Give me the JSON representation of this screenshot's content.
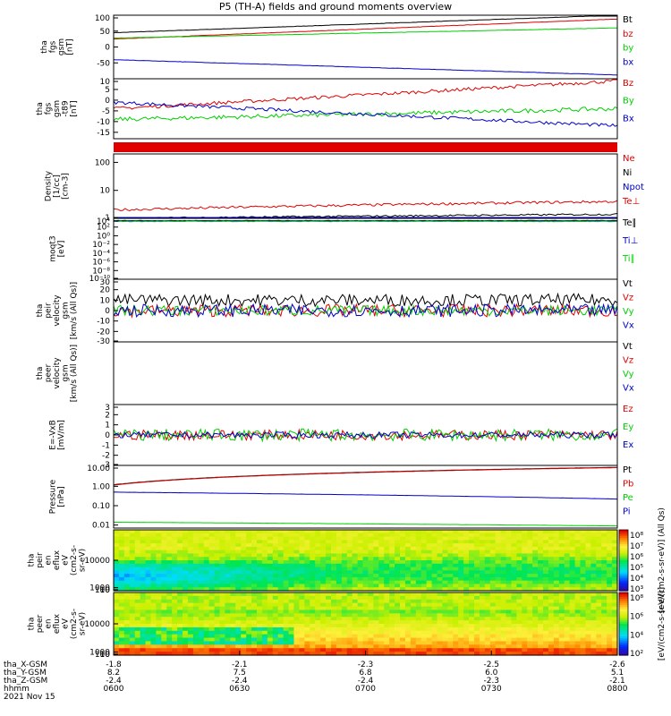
{
  "title": "P5 (TH-A) fields and ground moments overview",
  "colors": {
    "black": "#000000",
    "red": "#e00000",
    "green": "#00d000",
    "blue": "#0000c8"
  },
  "chart_data": [
    {
      "type": "line",
      "panel": "fgs_gsm",
      "ylabel": [
        "tha",
        "fgs",
        "gsm",
        "[nT]"
      ],
      "ylim": [
        -100,
        100
      ],
      "ticks": [
        100,
        50,
        0,
        -50
      ],
      "series": [
        {
          "name": "Bt",
          "color": "black",
          "start": 45,
          "end": 100,
          "noise": 0.5
        },
        {
          "name": "bz",
          "color": "red",
          "start": 25,
          "end": 88,
          "noise": 0.5
        },
        {
          "name": "by",
          "color": "green",
          "start": 28,
          "end": 60,
          "noise": 0.5
        },
        {
          "name": "bx",
          "color": "blue",
          "start": -40,
          "end": -88,
          "noise": 0.5
        }
      ]
    },
    {
      "type": "line",
      "panel": "fgs_dsl",
      "ylabel": [
        "tha",
        "fgs",
        "gsm",
        "-t89",
        "[nT]"
      ],
      "ylim": [
        -18,
        10
      ],
      "ticks": [
        10,
        5,
        0,
        -5,
        -10,
        -15
      ],
      "series": [
        {
          "name": "Bz",
          "color": "red",
          "start": -4,
          "end": 9,
          "noise": 0.8
        },
        {
          "name": "By",
          "color": "green",
          "start": -9,
          "end": -4,
          "noise": 1.0
        },
        {
          "name": "Bx",
          "color": "blue",
          "start": -1,
          "end": -12,
          "noise": 0.8
        }
      ]
    },
    {
      "type": "bar",
      "panel": "red_strip",
      "ylabel": []
    },
    {
      "type": "line",
      "panel": "density",
      "ylabel": [
        "Density",
        "[1/cc]",
        "[cm-3]"
      ],
      "scale": "log",
      "ylim": [
        1,
        200
      ],
      "ticks": [
        "100",
        "10",
        "1"
      ],
      "series": [
        {
          "name": "Ne",
          "color": "red",
          "start": 2,
          "end": 4,
          "noise": 0.15
        },
        {
          "name": "Ni",
          "color": "black",
          "start": 1,
          "end": 1.4,
          "noise": 0.1
        },
        {
          "name": "Npot",
          "color": "blue",
          "start": 1,
          "end": 1,
          "noise": 0.05
        },
        {
          "name": "Te⊥",
          "color": "red",
          "start": 0,
          "end": 0,
          "noise": 0
        }
      ]
    },
    {
      "type": "line",
      "panel": "temperature",
      "ylabel": [
        "moqt3",
        "[eV]"
      ],
      "scale": "log",
      "ylim": [
        1e-10,
        10000.0
      ],
      "ticks": [
        "10⁴",
        "10²",
        "10⁰",
        "10⁻²",
        "10⁻⁴",
        "10⁻⁶",
        "10⁻⁸",
        "10⁻¹⁰"
      ],
      "series": [
        {
          "name": "Te∥",
          "color": "black",
          "start": 3000,
          "end": 3000,
          "noise": 0.2
        },
        {
          "name": "Ti⊥",
          "color": "blue",
          "start": 2500,
          "end": 2500,
          "noise": 0.2
        },
        {
          "name": "Ti∥",
          "color": "green",
          "start": 2000,
          "end": 2000,
          "noise": 0.2
        }
      ]
    },
    {
      "type": "line",
      "panel": "peir_velocity",
      "ylabel": [
        "tha",
        "peir",
        "velocity",
        "gsm",
        "[km/s (All Qs)]"
      ],
      "ylim": [
        -30,
        30
      ],
      "ticks": [
        30,
        20,
        10,
        0,
        -10,
        -20,
        -30
      ],
      "series": [
        {
          "name": "Vt",
          "color": "black",
          "start": 10,
          "end": 10,
          "noise": 6
        },
        {
          "name": "Vz",
          "color": "red",
          "start": 0,
          "end": 0,
          "noise": 6
        },
        {
          "name": "Vy",
          "color": "green",
          "start": 0,
          "end": 0,
          "noise": 5
        },
        {
          "name": "Vx",
          "color": "blue",
          "start": 0,
          "end": 0,
          "noise": 6
        }
      ]
    },
    {
      "type": "line",
      "panel": "peer_velocity",
      "ylabel": [
        "tha",
        "peer",
        "velocity",
        "gsm",
        "[km/s (All Qs)]"
      ],
      "ylim": [
        -1,
        1
      ],
      "series": [
        {
          "name": "Vt",
          "color": "black"
        },
        {
          "name": "Vz",
          "color": "red"
        },
        {
          "name": "Vy",
          "color": "green"
        },
        {
          "name": "Vx",
          "color": "blue"
        }
      ]
    },
    {
      "type": "line",
      "panel": "efield",
      "ylabel": [
        "E=-VxB",
        "[mV/m]"
      ],
      "ylim": [
        -3,
        3
      ],
      "ticks": [
        3,
        2,
        1,
        0,
        -1,
        -2,
        -3
      ],
      "series": [
        {
          "name": "Ez",
          "color": "red",
          "start": 0,
          "end": 0,
          "noise": 0.5
        },
        {
          "name": "Ey",
          "color": "green",
          "start": 0,
          "end": 0,
          "noise": 0.6
        },
        {
          "name": "Ex",
          "color": "blue",
          "start": 0,
          "end": 0,
          "noise": 0.3
        }
      ]
    },
    {
      "type": "line",
      "panel": "pressure",
      "ylabel": [
        "Pressure",
        "[nPa]"
      ],
      "scale": "log",
      "ylim": [
        0.007,
        12
      ],
      "ticks": [
        "10.00",
        "1.00",
        "0.10",
        "0.01"
      ],
      "series": [
        {
          "name": "Pt",
          "color": "black",
          "start": 1.2,
          "end": 9.5,
          "noise": 0.01
        },
        {
          "name": "Pb",
          "color": "red",
          "start": 1.15,
          "end": 9.2,
          "noise": 0.01
        },
        {
          "name": "Pe",
          "color": "green",
          "start": 0.014,
          "end": 0.009,
          "noise": 0.01
        },
        {
          "name": "Pi",
          "color": "blue",
          "start": 0.5,
          "end": 0.22,
          "noise": 0.01
        }
      ]
    },
    {
      "type": "heatmap",
      "panel": "peir_spectrogram",
      "ylabel": [
        "tha",
        "peir",
        "en",
        "eflux",
        "eV",
        "(cm2-s-",
        "sr-eV)"
      ],
      "ylim": [
        5,
        20000
      ],
      "ticks": [
        "10000",
        "1000",
        "100",
        "10"
      ],
      "colorbar": {
        "label": "[eV/(cm2-s-sr-eV)] (All Qs)",
        "ticks": [
          "10⁸",
          "10⁷",
          "10⁶",
          "10⁵",
          "10⁴",
          "10³"
        ]
      }
    },
    {
      "type": "heatmap",
      "panel": "peer_spectrogram",
      "ylabel": [
        "tha",
        "peer",
        "en",
        "eflux",
        "eV",
        "(cm2-s-",
        "sr-eV)"
      ],
      "ylim": [
        5,
        20000
      ],
      "ticks": [
        "10000",
        "1000",
        "100",
        "10"
      ],
      "colorbar": {
        "label": "[eV/(cm2-s-sr-eV)]",
        "ticks": [
          "10⁸",
          "10⁶",
          "10⁴",
          "10²"
        ]
      }
    }
  ],
  "xaxis": {
    "row_labels": [
      "tha_X-GSM",
      "tha_Y-GSM",
      "tha_Z-GSM",
      "hhmm",
      "2021 Nov 15"
    ],
    "ticks": [
      {
        "x": "-1.8",
        "y": "8.2",
        "z": "-2.4",
        "t": "0600"
      },
      {
        "x": "-2.1",
        "y": "7.5",
        "z": "-2.4",
        "t": "0630"
      },
      {
        "x": "-2.3",
        "y": "6.8",
        "z": "-2.4",
        "t": "0700"
      },
      {
        "x": "-2.5",
        "y": "6.0",
        "z": "-2.3",
        "t": "0730"
      },
      {
        "x": "-2.6",
        "y": "5.1",
        "z": "-2.1",
        "t": "0800"
      }
    ]
  }
}
